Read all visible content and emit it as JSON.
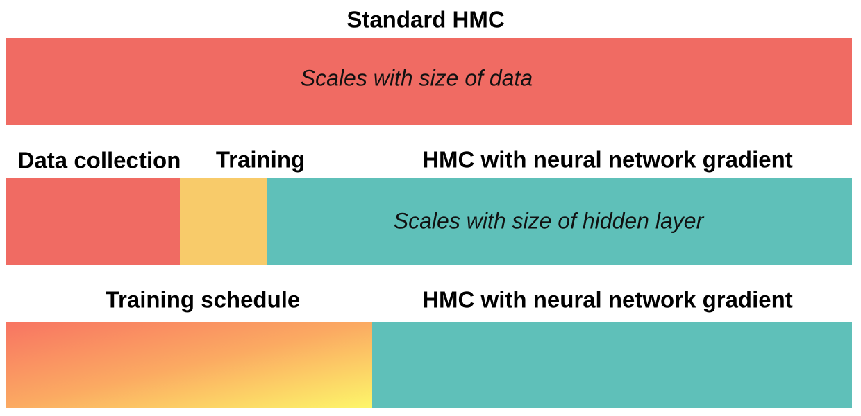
{
  "standard": {
    "title": "Standard HMC",
    "note": "Scales with size of data"
  },
  "stages": {
    "labels": [
      "Data collection",
      "Training",
      "HMC with neural network gradient"
    ],
    "note": "Scales with size of hidden layer"
  },
  "schedule": {
    "labels": [
      "Training schedule",
      "HMC with neural network gradient"
    ]
  }
}
